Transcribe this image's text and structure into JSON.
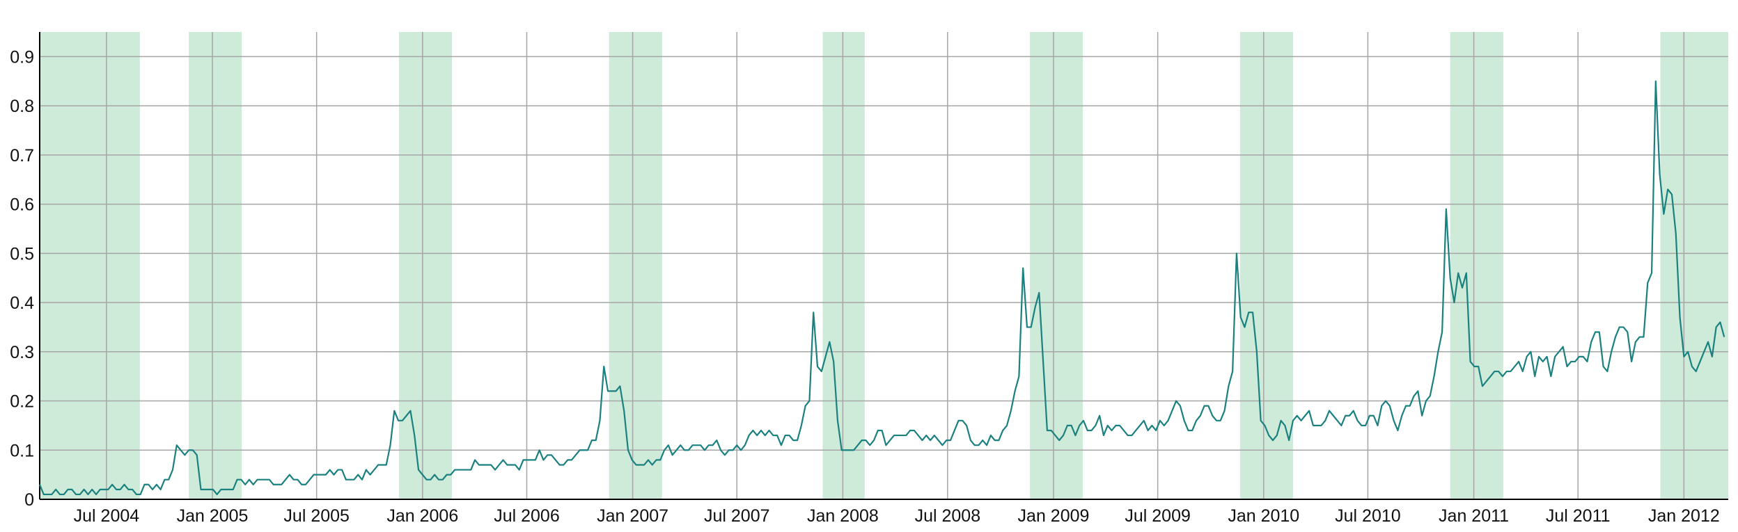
{
  "chart_data": {
    "type": "line",
    "title": "",
    "xlabel": "",
    "ylabel": "",
    "x_range": [
      "2004-03-07",
      "2012-03-18"
    ],
    "ylim": [
      0,
      0.95
    ],
    "grid": true,
    "legend": "none",
    "colors": {
      "line": "#1a8080",
      "shade": "#cdebd8",
      "grid": "#a6a6a6",
      "axis": "#000000"
    },
    "y_ticks": [
      0,
      0.1,
      0.2,
      0.3,
      0.4,
      0.5,
      0.6,
      0.7,
      0.8,
      0.9
    ],
    "y_tick_labels": [
      "0",
      "0.1",
      "0.2",
      "0.3",
      "0.4",
      "0.5",
      "0.6",
      "0.7",
      "0.8",
      "0.9"
    ],
    "x_ticks": [
      "2004-07-01",
      "2005-01-01",
      "2005-07-01",
      "2006-01-01",
      "2006-07-01",
      "2007-01-01",
      "2007-07-01",
      "2008-01-01",
      "2008-07-01",
      "2009-01-01",
      "2009-07-01",
      "2010-01-01",
      "2010-07-01",
      "2011-01-01",
      "2011-07-01",
      "2012-01-01"
    ],
    "x_tick_labels": [
      "Jul 2004",
      "Jan 2005",
      "Jul 2005",
      "Jan 2006",
      "Jul 2006",
      "Jan 2007",
      "Jul 2007",
      "Jan 2008",
      "Jul 2008",
      "Jan 2009",
      "Jul 2009",
      "Jan 2010",
      "Jul 2010",
      "Jan 2011",
      "Jul 2011",
      "Jan 2012"
    ],
    "shaded_periods": [
      [
        "2004-03-07",
        "2004-08-28"
      ],
      [
        "2004-11-21",
        "2005-02-21"
      ],
      [
        "2005-11-21",
        "2006-02-21"
      ],
      [
        "2006-11-21",
        "2007-02-21"
      ],
      [
        "2007-11-27",
        "2008-02-08"
      ],
      [
        "2008-11-21",
        "2009-02-21"
      ],
      [
        "2009-11-21",
        "2010-02-21"
      ],
      [
        "2010-11-21",
        "2011-02-21"
      ],
      [
        "2011-11-21",
        "2012-03-18"
      ]
    ],
    "series": [
      {
        "start": "2004-03-07",
        "step_days": 7,
        "values": [
          0.03,
          0.01,
          0.01,
          0.01,
          0.02,
          0.01,
          0.01,
          0.02,
          0.02,
          0.01,
          0.01,
          0.02,
          0.01,
          0.02,
          0.01,
          0.02,
          0.02,
          0.02,
          0.03,
          0.02,
          0.02,
          0.03,
          0.02,
          0.02,
          0.01,
          0.01,
          0.03,
          0.03,
          0.02,
          0.03,
          0.02,
          0.04,
          0.04,
          0.06,
          0.11,
          0.1,
          0.09,
          0.1,
          0.1,
          0.09,
          0.02,
          0.02,
          0.02,
          0.02,
          0.01,
          0.02,
          0.02,
          0.02,
          0.02,
          0.04,
          0.04,
          0.03,
          0.04,
          0.03,
          0.04,
          0.04,
          0.04,
          0.04,
          0.03,
          0.03,
          0.03,
          0.04,
          0.05,
          0.04,
          0.04,
          0.03,
          0.03,
          0.04,
          0.05,
          0.05,
          0.05,
          0.05,
          0.06,
          0.05,
          0.06,
          0.06,
          0.04,
          0.04,
          0.04,
          0.05,
          0.04,
          0.06,
          0.05,
          0.06,
          0.07,
          0.07,
          0.07,
          0.11,
          0.18,
          0.16,
          0.16,
          0.17,
          0.18,
          0.13,
          0.06,
          0.05,
          0.04,
          0.04,
          0.05,
          0.04,
          0.04,
          0.05,
          0.05,
          0.06,
          0.06,
          0.06,
          0.06,
          0.06,
          0.08,
          0.07,
          0.07,
          0.07,
          0.07,
          0.06,
          0.07,
          0.08,
          0.07,
          0.07,
          0.07,
          0.06,
          0.08,
          0.08,
          0.08,
          0.08,
          0.1,
          0.08,
          0.09,
          0.09,
          0.08,
          0.07,
          0.07,
          0.08,
          0.08,
          0.09,
          0.1,
          0.1,
          0.1,
          0.12,
          0.12,
          0.16,
          0.27,
          0.22,
          0.22,
          0.22,
          0.23,
          0.18,
          0.1,
          0.08,
          0.07,
          0.07,
          0.07,
          0.08,
          0.07,
          0.08,
          0.08,
          0.1,
          0.11,
          0.09,
          0.1,
          0.11,
          0.1,
          0.1,
          0.11,
          0.11,
          0.11,
          0.1,
          0.11,
          0.11,
          0.12,
          0.1,
          0.09,
          0.1,
          0.1,
          0.11,
          0.1,
          0.11,
          0.13,
          0.14,
          0.13,
          0.14,
          0.13,
          0.14,
          0.13,
          0.13,
          0.11,
          0.13,
          0.13,
          0.12,
          0.12,
          0.15,
          0.19,
          0.2,
          0.38,
          0.27,
          0.26,
          0.29,
          0.32,
          0.28,
          0.16,
          0.1,
          0.1,
          0.1,
          0.1,
          0.11,
          0.12,
          0.12,
          0.11,
          0.12,
          0.14,
          0.14,
          0.11,
          0.12,
          0.13,
          0.13,
          0.13,
          0.13,
          0.14,
          0.14,
          0.13,
          0.12,
          0.13,
          0.12,
          0.13,
          0.12,
          0.11,
          0.12,
          0.12,
          0.14,
          0.16,
          0.16,
          0.15,
          0.12,
          0.11,
          0.11,
          0.12,
          0.11,
          0.13,
          0.12,
          0.12,
          0.14,
          0.15,
          0.18,
          0.22,
          0.25,
          0.47,
          0.35,
          0.35,
          0.39,
          0.42,
          0.28,
          0.14,
          0.14,
          0.13,
          0.12,
          0.13,
          0.15,
          0.15,
          0.13,
          0.15,
          0.16,
          0.14,
          0.14,
          0.15,
          0.17,
          0.13,
          0.15,
          0.14,
          0.15,
          0.15,
          0.14,
          0.13,
          0.13,
          0.14,
          0.15,
          0.16,
          0.14,
          0.15,
          0.14,
          0.16,
          0.15,
          0.16,
          0.18,
          0.2,
          0.19,
          0.16,
          0.14,
          0.14,
          0.16,
          0.17,
          0.19,
          0.19,
          0.17,
          0.16,
          0.16,
          0.18,
          0.23,
          0.26,
          0.5,
          0.37,
          0.35,
          0.38,
          0.38,
          0.3,
          0.16,
          0.15,
          0.13,
          0.12,
          0.13,
          0.16,
          0.15,
          0.12,
          0.16,
          0.17,
          0.16,
          0.17,
          0.18,
          0.15,
          0.15,
          0.15,
          0.16,
          0.18,
          0.17,
          0.16,
          0.15,
          0.17,
          0.17,
          0.18,
          0.16,
          0.15,
          0.15,
          0.17,
          0.17,
          0.15,
          0.19,
          0.2,
          0.19,
          0.16,
          0.14,
          0.17,
          0.19,
          0.19,
          0.21,
          0.22,
          0.17,
          0.2,
          0.21,
          0.25,
          0.3,
          0.34,
          0.59,
          0.45,
          0.4,
          0.46,
          0.43,
          0.46,
          0.28,
          0.27,
          0.27,
          0.23,
          0.24,
          0.25,
          0.26,
          0.26,
          0.25,
          0.26,
          0.26,
          0.27,
          0.28,
          0.26,
          0.29,
          0.3,
          0.25,
          0.29,
          0.28,
          0.29,
          0.25,
          0.29,
          0.3,
          0.31,
          0.27,
          0.28,
          0.28,
          0.29,
          0.29,
          0.28,
          0.32,
          0.34,
          0.34,
          0.27,
          0.26,
          0.3,
          0.33,
          0.35,
          0.35,
          0.34,
          0.28,
          0.32,
          0.33,
          0.33,
          0.44,
          0.46,
          0.85,
          0.66,
          0.58,
          0.63,
          0.62,
          0.54,
          0.37,
          0.29,
          0.3,
          0.27,
          0.26,
          0.28,
          0.3,
          0.32,
          0.29,
          0.35,
          0.36,
          0.33
        ]
      }
    ]
  }
}
